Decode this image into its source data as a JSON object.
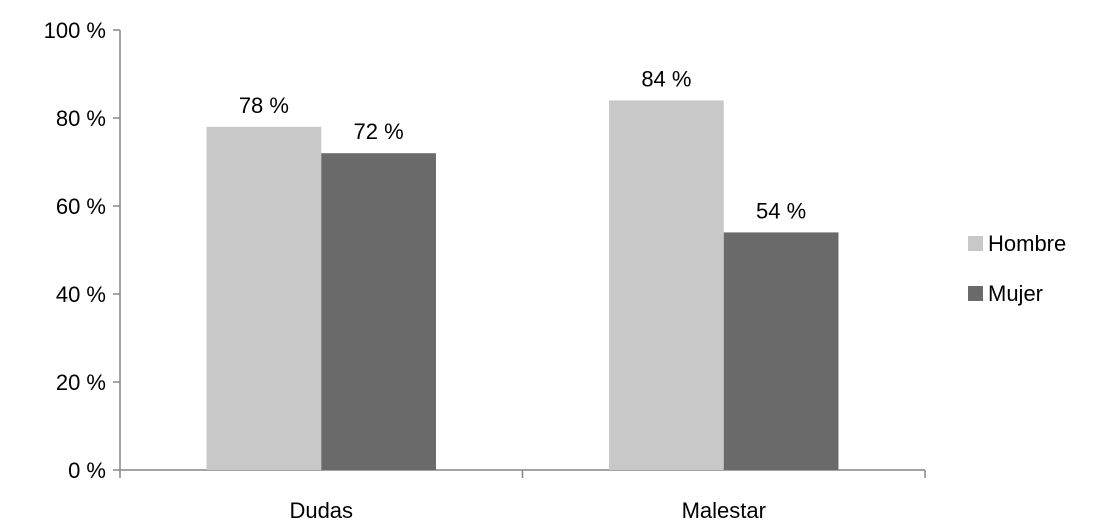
{
  "chart_data": {
    "type": "bar",
    "categories": [
      "Dudas",
      "Malestar"
    ],
    "series": [
      {
        "name": "Hombre",
        "values": [
          78,
          84
        ],
        "color": "#c8c8c8"
      },
      {
        "name": "Mujer",
        "values": [
          72,
          54
        ],
        "color": "#6a6a6a"
      }
    ],
    "data_labels": [
      [
        "78 %",
        "84 %"
      ],
      [
        "72 %",
        "54 %"
      ]
    ],
    "yticks": [
      0,
      20,
      40,
      60,
      80,
      100
    ],
    "ytick_labels": [
      "0 %",
      "20 %",
      "40 %",
      "60 %",
      "80 %",
      "100 %"
    ],
    "ylim": [
      0,
      100
    ],
    "title": "",
    "xlabel": "",
    "ylabel": "",
    "grid": false,
    "legend": "right",
    "axis_color": "#868686"
  }
}
